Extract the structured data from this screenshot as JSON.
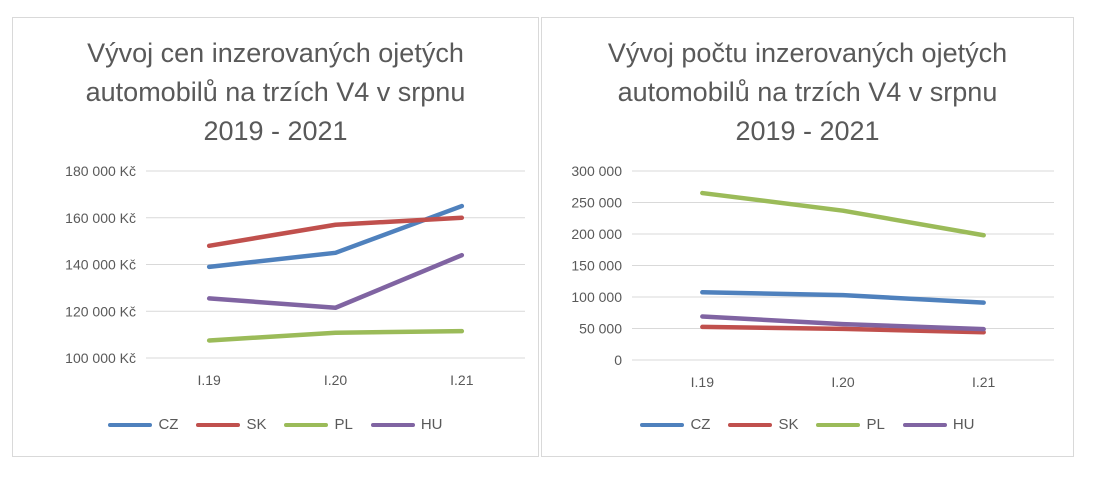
{
  "colors": {
    "CZ": "#4f81bd",
    "SK": "#c0504d",
    "PL": "#9bbb59",
    "HU": "#8064a2",
    "grid": "#d9d9d9"
  },
  "chart_data": [
    {
      "type": "line",
      "title_lines": [
        "Vývoj cen inzerovaných ojetých",
        "automobilů na trzích V4 v srpnu",
        "2019 - 2021"
      ],
      "categories": [
        "I.19",
        "I.20",
        "I.21"
      ],
      "yticks": [
        "180 000 Kč",
        "160 000 Kč",
        "140 000 Kč",
        "120 000 Kč",
        "100 000 Kč"
      ],
      "ylim": [
        100000,
        180000
      ],
      "grid": true,
      "legend_position": "bottom",
      "series": [
        {
          "name": "CZ",
          "values": [
            139000,
            145000,
            165000
          ]
        },
        {
          "name": "SK",
          "values": [
            148000,
            157000,
            160000
          ]
        },
        {
          "name": "PL",
          "values": [
            107500,
            110800,
            111500
          ]
        },
        {
          "name": "HU",
          "values": [
            125500,
            121500,
            144000
          ]
        }
      ]
    },
    {
      "type": "line",
      "title_lines": [
        "Vývoj počtu inzerovaných ojetých",
        "automobilů na trzích V4 v srpnu",
        "2019 - 2021"
      ],
      "categories": [
        "I.19",
        "I.20",
        "I.21"
      ],
      "yticks": [
        "300 000",
        "250 000",
        "200 000",
        "150 000",
        "100 000",
        "50 000",
        "0"
      ],
      "ylim": [
        0,
        300000
      ],
      "grid": true,
      "legend_position": "bottom",
      "series": [
        {
          "name": "CZ",
          "values": [
            107500,
            103000,
            91000
          ]
        },
        {
          "name": "SK",
          "values": [
            52500,
            49500,
            44000
          ]
        },
        {
          "name": "PL",
          "values": [
            265000,
            237000,
            198000
          ]
        },
        {
          "name": "HU",
          "values": [
            69000,
            57000,
            49000
          ]
        }
      ]
    }
  ]
}
